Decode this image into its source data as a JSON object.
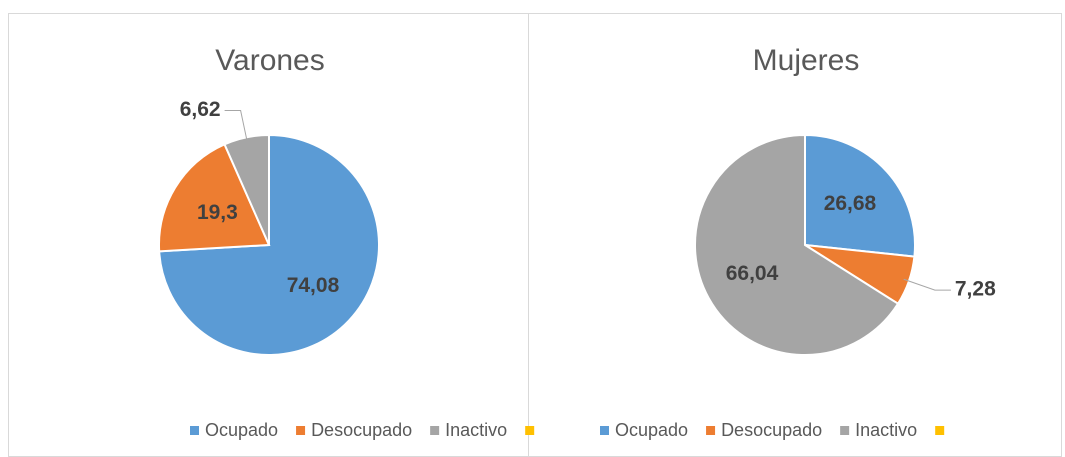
{
  "chart_data": [
    {
      "type": "pie",
      "title": "Varones",
      "categories": [
        "Ocupado",
        "Desocupado",
        "Inactivo",
        null
      ],
      "values": [
        74.08,
        19.3,
        6.62,
        null
      ],
      "value_labels": [
        "74,08",
        "19,3",
        "6,62",
        null
      ],
      "colors": [
        "#5b9bd5",
        "#ed7d31",
        "#a5a5a5",
        "#ffc000"
      ],
      "legend": "bottom"
    },
    {
      "type": "pie",
      "title": "Mujeres",
      "categories": [
        "Ocupado",
        "Desocupado",
        "Inactivo",
        null
      ],
      "values": [
        26.68,
        7.28,
        66.04,
        null
      ],
      "value_labels": [
        "26,68",
        "7,28",
        "66,04",
        null
      ],
      "colors": [
        "#5b9bd5",
        "#ed7d31",
        "#a5a5a5",
        "#ffc000"
      ],
      "legend": "bottom"
    }
  ]
}
